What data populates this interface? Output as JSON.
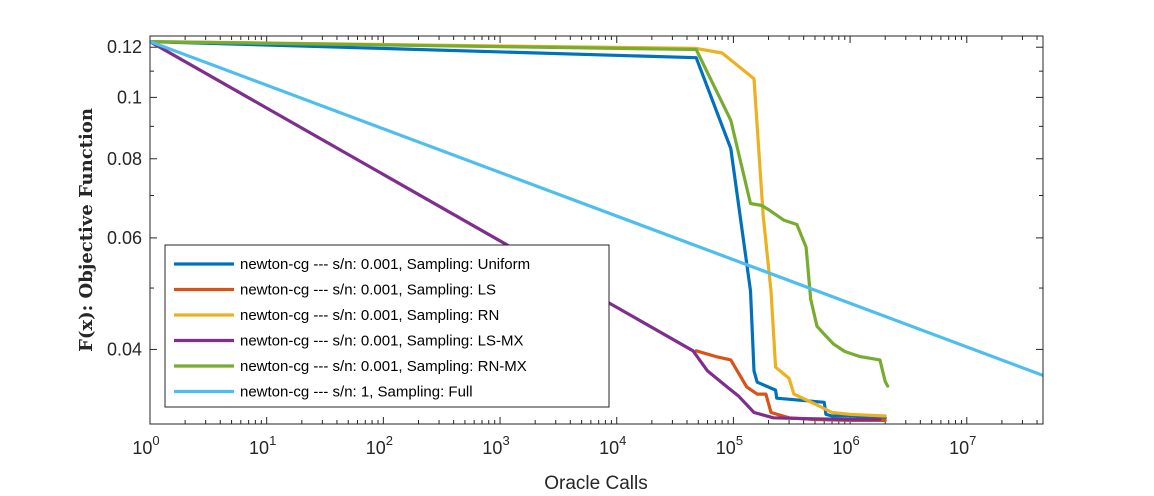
{
  "chart_data": {
    "type": "line",
    "xlabel": "Oracle Calls",
    "ylabel": "F(x): Objective Function",
    "xscale": "log",
    "yscale": "log",
    "xlim": [
      1,
      45000000
    ],
    "ylim": [
      0.0305,
      0.125
    ],
    "x_tick_labels": [
      "10^0",
      "10^1",
      "10^2",
      "10^3",
      "10^4",
      "10^5",
      "10^6",
      "10^7"
    ],
    "y_ticks": [
      0.04,
      0.06,
      0.08,
      0.1,
      0.12
    ],
    "y_tick_labels": [
      "0.04",
      "0.06",
      "0.08",
      "0.1",
      "0.12"
    ],
    "legend_position": "bottom-left",
    "series": [
      {
        "name": "newton-cg --- s/n: 0.001, Sampling: Uniform",
        "color": "#0072BD",
        "x": [
          1,
          48000,
          95000,
          140000,
          150000,
          160000,
          230000,
          235000,
          600000,
          620000,
          700000,
          1000000,
          2000000
        ],
        "y": [
          0.1225,
          0.1155,
          0.083,
          0.0495,
          0.037,
          0.0355,
          0.0345,
          0.0335,
          0.033,
          0.0316,
          0.0314,
          0.0314,
          0.0312
        ]
      },
      {
        "name": "newton-cg --- s/n: 0.001, Sampling: LS",
        "color": "#D95319",
        "x": [
          48000,
          70000,
          95000,
          130000,
          160000,
          190000,
          210000,
          300000,
          500000,
          1000000,
          2000000
        ],
        "y": [
          0.0398,
          0.039,
          0.0385,
          0.0349,
          0.034,
          0.034,
          0.0318,
          0.0312,
          0.031,
          0.0309,
          0.0309
        ]
      },
      {
        "name": "newton-cg --- s/n: 0.001, Sampling: RN",
        "color": "#EDB120",
        "x": [
          1,
          48000,
          80000,
          150000,
          180000,
          210000,
          230000,
          300000,
          330000,
          500000,
          700000,
          1000000,
          2000000
        ],
        "y": [
          0.1225,
          0.1195,
          0.1175,
          0.107,
          0.065,
          0.0495,
          0.0375,
          0.036,
          0.034,
          0.0328,
          0.0318,
          0.0316,
          0.0314
        ]
      },
      {
        "name": "newton-cg --- s/n: 0.001, Sampling: LS-MX",
        "color": "#7E2F8E",
        "x": [
          1,
          45000,
          60000,
          90000,
          110000,
          150000,
          220000,
          400000,
          1000000,
          1800000
        ],
        "y": [
          0.1225,
          0.0398,
          0.037,
          0.0348,
          0.0338,
          0.0318,
          0.0312,
          0.0311,
          0.031,
          0.031
        ]
      },
      {
        "name": "newton-cg --- s/n: 0.001, Sampling: RN-MX",
        "color": "#77AC30",
        "x": [
          1,
          48000,
          95000,
          140000,
          175000,
          200000,
          270000,
          350000,
          420000,
          460000,
          520000,
          620000,
          720000,
          900000,
          1200000,
          1800000,
          2000000,
          2100000
        ],
        "y": [
          0.1225,
          0.119,
          0.092,
          0.068,
          0.0675,
          0.0665,
          0.064,
          0.063,
          0.058,
          0.048,
          0.0435,
          0.042,
          0.0408,
          0.0397,
          0.039,
          0.0385,
          0.0356,
          0.035
        ]
      },
      {
        "name": "newton-cg --- s/n: 1, Sampling: Full",
        "color": "#4DBEEE",
        "x": [
          1,
          45000000
        ],
        "y": [
          0.1225,
          0.0364
        ]
      }
    ]
  }
}
